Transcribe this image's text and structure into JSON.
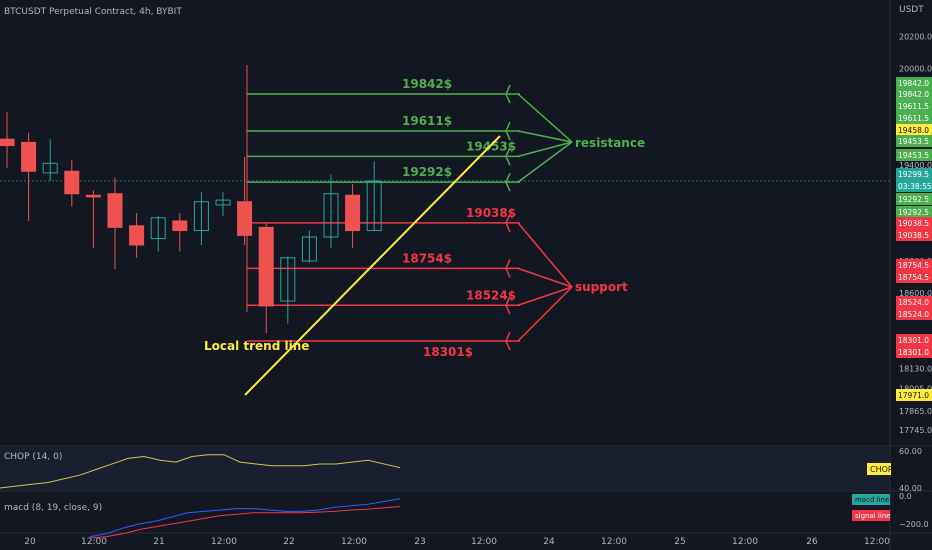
{
  "header": {
    "symbol": "BTCUSDT Perpetual Contract, 4h, BYBIT",
    "currency": "USDT"
  },
  "price_axis": {
    "ticks": [
      "20200.0",
      "20000.0",
      "19400.0",
      "18800.0",
      "18600.0",
      "18130.0",
      "18005.0",
      "17865.0",
      "17745.0"
    ],
    "labels": [
      {
        "text": "19842.0",
        "color": "#4caf50"
      },
      {
        "text": "19842.0",
        "color": "#4caf50"
      },
      {
        "text": "19611.5",
        "color": "#4caf50"
      },
      {
        "text": "19611.5",
        "color": "#4caf50"
      },
      {
        "text": "19458.0",
        "color": "#ffeb3b"
      },
      {
        "text": "19453.5",
        "color": "#4caf50"
      },
      {
        "text": "19453.5",
        "color": "#4caf50"
      },
      {
        "text": "19299.5",
        "color": "#26a69a"
      },
      {
        "text": "03:38:55",
        "color": "#26a69a"
      },
      {
        "text": "19292.5",
        "color": "#4caf50"
      },
      {
        "text": "19292.5",
        "color": "#4caf50"
      },
      {
        "text": "19038.5",
        "color": "#f23645"
      },
      {
        "text": "19038.5",
        "color": "#f23645"
      },
      {
        "text": "18754.5",
        "color": "#f23645"
      },
      {
        "text": "18754.5",
        "color": "#f23645"
      },
      {
        "text": "18524.0",
        "color": "#f23645"
      },
      {
        "text": "18524.0",
        "color": "#f23645"
      },
      {
        "text": "18301.0",
        "color": "#f23645"
      },
      {
        "text": "18301.0",
        "color": "#f23645"
      },
      {
        "text": "17971.0",
        "color": "#ffeb3b"
      }
    ]
  },
  "time_axis": [
    "20",
    "12:00",
    "21",
    "12:00",
    "22",
    "12:00",
    "23",
    "12:00",
    "24",
    "12:00",
    "25",
    "12:00",
    "26",
    "12:00"
  ],
  "chart_data": {
    "type": "candlestick",
    "candles": [
      {
        "o": 19560,
        "h": 19730,
        "l": 19380,
        "c": 19520
      },
      {
        "o": 19540,
        "h": 19600,
        "l": 19050,
        "c": 19360
      },
      {
        "o": 19350,
        "h": 19560,
        "l": 19300,
        "c": 19410
      },
      {
        "o": 19360,
        "h": 19430,
        "l": 19140,
        "c": 19220
      },
      {
        "o": 19210,
        "h": 19240,
        "l": 18880,
        "c": 19200
      },
      {
        "o": 19220,
        "h": 19320,
        "l": 18750,
        "c": 19010
      },
      {
        "o": 19020,
        "h": 19100,
        "l": 18820,
        "c": 18900
      },
      {
        "o": 18940,
        "h": 19080,
        "l": 18860,
        "c": 19070
      },
      {
        "o": 19050,
        "h": 19100,
        "l": 18860,
        "c": 18990
      },
      {
        "o": 18990,
        "h": 19230,
        "l": 18900,
        "c": 19170
      },
      {
        "o": 19150,
        "h": 19230,
        "l": 19080,
        "c": 19180
      },
      {
        "o": 19170,
        "h": 19450,
        "l": 18900,
        "c": 18960
      },
      {
        "o": 19010,
        "h": 19040,
        "l": 18350,
        "c": 18520
      },
      {
        "o": 18550,
        "h": 18830,
        "l": 18410,
        "c": 18820
      },
      {
        "o": 18800,
        "h": 18990,
        "l": 18790,
        "c": 18950
      },
      {
        "o": 18950,
        "h": 19340,
        "l": 18880,
        "c": 19220
      },
      {
        "o": 19210,
        "h": 19280,
        "l": 18880,
        "c": 18990
      },
      {
        "o": 18990,
        "h": 19420,
        "l": 18990,
        "c": 19300
      }
    ],
    "levels": [
      {
        "label": "19842$",
        "value": 19842,
        "group": "resistance"
      },
      {
        "label": "19611$",
        "value": 19611,
        "group": "resistance"
      },
      {
        "label": "19453$",
        "value": 19453,
        "group": "resistance"
      },
      {
        "label": "19292$",
        "value": 19292,
        "group": "resistance"
      },
      {
        "label": "19038$",
        "value": 19038,
        "group": "support"
      },
      {
        "label": "18754$",
        "value": 18754,
        "group": "support"
      },
      {
        "label": "18524$",
        "value": 18524,
        "group": "support"
      },
      {
        "label": "18301$",
        "value": 18301,
        "group": "support"
      }
    ],
    "resistance_label": "resistance",
    "support_label": "support",
    "trend_label": "Local trend line",
    "chop": {
      "title": "CHOP (14, 0)",
      "ticks": [
        "60.00",
        "40.00"
      ],
      "badge": "CHOP",
      "values": [
        40,
        41,
        42,
        43,
        45,
        47,
        50,
        53,
        56,
        57,
        55,
        54,
        57,
        58,
        58,
        54,
        53,
        52,
        52,
        52,
        53,
        53,
        54,
        55,
        53,
        51
      ]
    },
    "macd": {
      "title": "macd (8, 19, close, 9)",
      "ticks": [
        "0.0",
        "−200.0"
      ],
      "macd_badge": "macd line",
      "signal_badge": "signal line",
      "macd_values": [
        -290,
        -270,
        -230,
        -200,
        -180,
        -150,
        -120,
        -110,
        -100,
        -90,
        -90,
        -100,
        -110,
        -110,
        -100,
        -80,
        -70,
        -60,
        -40,
        -20
      ],
      "signal_values": [
        -300,
        -290,
        -270,
        -240,
        -220,
        -200,
        -180,
        -160,
        -140,
        -130,
        -120,
        -120,
        -120,
        -120,
        -115,
        -110,
        -100,
        -95,
        -85,
        -75
      ]
    },
    "colors": {
      "up": "#26a69a",
      "down": "#ef5350",
      "resistance": "#4caf50",
      "support": "#f23645",
      "trend": "#ffeb3b"
    }
  }
}
